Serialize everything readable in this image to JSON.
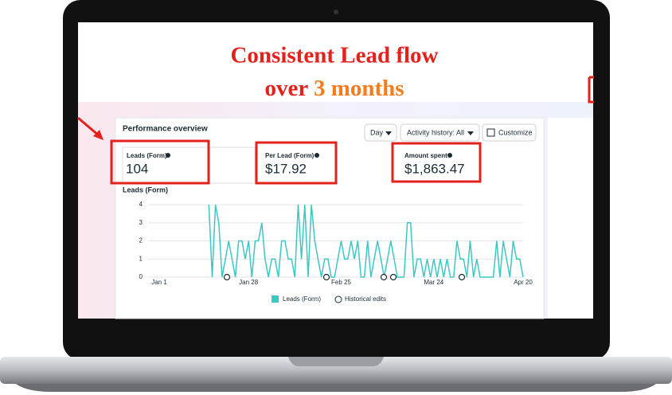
{
  "header": {
    "title_line1": "Consistent Lead flow",
    "title_line2": "over",
    "title_highlight": "3 months"
  },
  "performance": {
    "title": "Performance overview",
    "controls": [
      "Day",
      "Activity history: All",
      "Customize"
    ],
    "metrics": [
      {
        "label": "Leads (Form)",
        "value": "104"
      },
      {
        "label": "Per Lead (Form)",
        "value": "$17.92"
      },
      {
        "label": "Amount spent",
        "value": "$1,863.47"
      }
    ],
    "legend_extra": "Historical edits"
  },
  "chart_data": {
    "type": "line",
    "title": "Leads (Form)",
    "categories": [
      "Jan 1",
      null,
      null,
      null,
      null,
      null,
      null,
      null,
      null,
      null,
      null,
      null,
      null,
      null,
      null,
      null,
      null,
      null,
      null,
      null,
      null,
      null,
      null,
      null,
      null,
      null,
      null,
      "Jan 28",
      null,
      null,
      null,
      null,
      null,
      null,
      null,
      null,
      null,
      null,
      null,
      null,
      null,
      null,
      null,
      null,
      null,
      null,
      null,
      null,
      null,
      null,
      null,
      null,
      null,
      null,
      null,
      "Feb 25",
      null,
      null,
      null,
      null,
      null,
      null,
      null,
      null,
      null,
      null,
      null,
      null,
      null,
      null,
      null,
      null,
      null,
      null,
      null,
      null,
      null,
      null,
      null,
      null,
      null,
      null,
      null,
      "Mar 24",
      null,
      null,
      null,
      null,
      null,
      null,
      null,
      null,
      null,
      null,
      null,
      null,
      null,
      null,
      null,
      null,
      null,
      null,
      null,
      null,
      null,
      null,
      null,
      null,
      null,
      null,
      "Apr 20"
    ],
    "series": [
      {
        "name": "Leads (Form)",
        "color": "#3cc8c4",
        "values": [
          null,
          null,
          null,
          null,
          null,
          null,
          null,
          null,
          null,
          null,
          null,
          null,
          null,
          null,
          null,
          4,
          0,
          4,
          3,
          0,
          1,
          2,
          1,
          0,
          2,
          2,
          1,
          2,
          0,
          2,
          2,
          3,
          1,
          0,
          1,
          1,
          0,
          2,
          2,
          1,
          1,
          0,
          4,
          1,
          4,
          0,
          4,
          2,
          1,
          0,
          1,
          1,
          0,
          0,
          1,
          2,
          1,
          1,
          2,
          1,
          2,
          0,
          0,
          2,
          0,
          1,
          2,
          1,
          0,
          1,
          2,
          1,
          0,
          0,
          0,
          3,
          3,
          0,
          1,
          1,
          0,
          1,
          0,
          1,
          0,
          1,
          0,
          1,
          0,
          0,
          2,
          1,
          1,
          0,
          2,
          0,
          1,
          0,
          0,
          0,
          0,
          0,
          2,
          0,
          2,
          1,
          0,
          2,
          1,
          1,
          0
        ]
      }
    ],
    "ylim": [
      0,
      4
    ],
    "yticks": [
      0,
      1,
      2,
      3,
      4
    ],
    "grid": true
  }
}
